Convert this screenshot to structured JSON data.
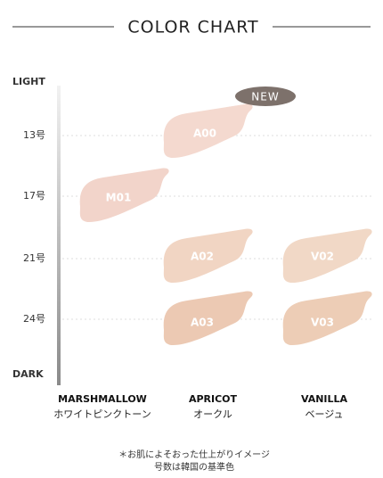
{
  "header": {
    "title": "COLOR CHART"
  },
  "scale": {
    "top": "LIGHT",
    "rows": [
      "13号",
      "17号",
      "21号",
      "24号"
    ],
    "bottom": "DARK"
  },
  "badge": "NEW",
  "swatches": [
    "A00",
    "M01",
    "A02",
    "V02",
    "A03",
    "V03"
  ],
  "columns": [
    {
      "name": "MARSHMALLOW",
      "tone": "ホワイトピンクトーン"
    },
    {
      "name": "APRICOT",
      "tone": "オークル"
    },
    {
      "name": "VANILLA",
      "tone": "ベージュ"
    }
  ],
  "footnote": [
    "＊お肌によそおった仕上がりイメージ",
    "号数は韓国の基準色"
  ]
}
